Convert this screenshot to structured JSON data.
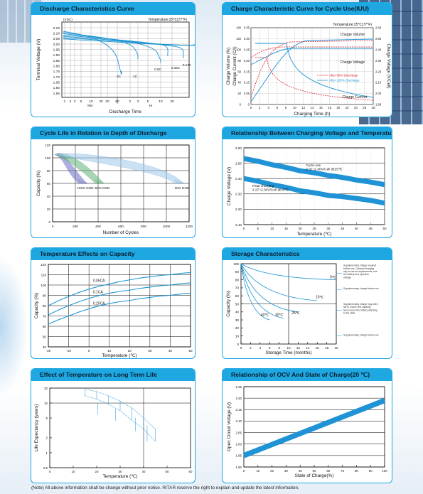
{
  "note": "(Note) All above information shall be change without prior notice. RITAR reserve the right to explain and update the latest information.",
  "colors": {
    "accent": "#1ea7e1",
    "band": "#1f93d6",
    "line": "#1b94d3",
    "red": "#e0202a",
    "dark": "#000000"
  },
  "panels": {
    "p1": {
      "title": "Discharge Characteristics Curve"
    },
    "p2": {
      "title": "Charge Characteristic Curve for Cycle Use(IUU)"
    },
    "p3": {
      "title": "Cycle Life in Relation to Depth of Discharge"
    },
    "p4": {
      "title": "Relationship Between Charging Voltage and Temperature"
    },
    "p5": {
      "title": "Temperature Effects on Capacity"
    },
    "p6": {
      "title": "Storage Characteristics"
    },
    "p7": {
      "title": "Effect of Temperature on Long Term Life"
    },
    "p8": {
      "title": "Relationship of OCV And State of Charge(20 ℃)"
    }
  },
  "chart_data": [
    {
      "id": "p1",
      "type": "line",
      "xlabel": "Discharge Time",
      "ylabel": "Terminal Voltage (V)",
      "annotation": "Temperature:25℃(77°F)",
      "yunit": "(VDC)",
      "ylim": [
        1.5,
        2.2
      ],
      "yticks": [
        "2.15",
        "2.10",
        "2.05",
        "2.00",
        "1.95",
        "1.90",
        "1.85",
        "1.80",
        "1.75",
        "1.70",
        "1.65",
        "1.60",
        "1.55"
      ],
      "xticks": [
        "1",
        "2",
        "3",
        "5",
        "10",
        "20",
        "30",
        "60",
        "2",
        "3",
        "5",
        "10",
        "20"
      ],
      "xunits": [
        "Min",
        "Hr"
      ],
      "series": [
        {
          "name": "3C",
          "end_v": 1.62
        },
        {
          "name": "1C",
          "end_v": 1.68
        },
        {
          "name": "0.6C",
          "end_v": 1.72
        },
        {
          "name": "0.25C",
          "end_v": 1.77
        },
        {
          "name": "0.17C",
          "end_v": 1.8
        },
        {
          "name": "0.1C",
          "end_v": 1.8
        },
        {
          "name": "0.05C",
          "end_v": 1.83
        }
      ]
    },
    {
      "id": "p2",
      "type": "line",
      "xlabel": "Charging Time (h)",
      "ylabel": "Charge Volume (%)",
      "ylabel2": "Charge Current (CA)",
      "ylabel3": "Charge Voltage (V/Cell)",
      "annotation": "Temperature:25℃(77°F)",
      "legend": [
        "After 50% Discharge",
        "After 100% Discharge"
      ],
      "labels": [
        "Charge Volume",
        "Charge Voltage",
        "Charge Current"
      ],
      "xticks": [
        "0",
        "2",
        "4",
        "6",
        "8",
        "10",
        "12",
        "14",
        "16",
        "18",
        "20",
        "22",
        "24",
        "26",
        "28"
      ],
      "yticks_left": [
        "140",
        "120",
        "100",
        "80",
        "60",
        "40",
        "20",
        "0"
      ],
      "yticks_ca": [
        "0.35",
        "0.30",
        "0.25",
        "0.20",
        "0.15",
        "0.10",
        "0.05",
        "0"
      ],
      "yticks_right": [
        "2.60",
        "2.50",
        "2.40",
        "2.30",
        "2.20",
        "2.10",
        "2.00",
        "1.90"
      ]
    },
    {
      "id": "p3",
      "type": "area",
      "xlabel": "Number of Cycles",
      "ylabel": "Capacity (%)",
      "xlim": [
        0,
        1200
      ],
      "ylim": [
        0,
        120
      ],
      "xticks": [
        "0",
        "200",
        "400",
        "600",
        "800",
        "1000",
        "1200"
      ],
      "yticks": [
        "120",
        "100",
        "80",
        "60",
        "40",
        "20",
        "0"
      ],
      "series": [
        {
          "name": "100% DOD",
          "end_cycles": 300
        },
        {
          "name": "50% DOD",
          "end_cycles": 450
        },
        {
          "name": "30% DOD",
          "end_cycles": 1150
        }
      ]
    },
    {
      "id": "p4",
      "type": "line",
      "xlabel": "Temperature (℃)",
      "ylabel": "Charge Voltage (V)",
      "xlim": [
        0,
        50
      ],
      "ylim": [
        2.1,
        2.6
      ],
      "xticks": [
        "0",
        "5",
        "10",
        "15",
        "20",
        "25",
        "30",
        "35",
        "40",
        "45",
        "50"
      ],
      "yticks": [
        "2.60",
        "2.50",
        "2.40",
        "2.30",
        "2.20",
        "2.10"
      ],
      "series": [
        {
          "name": "Cycle use",
          "detail": "2.37~2.40V/Cell @25℃",
          "x": [
            0,
            10,
            20,
            30,
            40,
            50
          ],
          "y": [
            2.53,
            2.49,
            2.45,
            2.42,
            2.39,
            2.36
          ]
        },
        {
          "name": "Float charging",
          "detail": "2.27~2.30V/Cell @25℃",
          "x": [
            0,
            10,
            20,
            30,
            40,
            50
          ],
          "y": [
            2.4,
            2.36,
            2.32,
            2.29,
            2.27,
            2.24
          ]
        }
      ]
    },
    {
      "id": "p5",
      "type": "line",
      "xlabel": "Temperature (℃)",
      "ylabel": "Capacity (%)",
      "xlim": [
        -20,
        50
      ],
      "ylim": [
        40,
        120
      ],
      "xticks": [
        "-20",
        "-10",
        "0",
        "10",
        "20",
        "30",
        "40",
        "50"
      ],
      "yticks": [
        "120",
        "110",
        "100",
        "90",
        "80",
        "70",
        "60",
        "50",
        "40"
      ],
      "series": [
        {
          "name": "0.05CA",
          "x": [
            -20,
            -10,
            0,
            10,
            20,
            30,
            40,
            50
          ],
          "y": [
            80,
            89,
            96,
            101,
            105,
            108,
            110,
            112
          ]
        },
        {
          "name": "0.1CA",
          "x": [
            -20,
            -10,
            0,
            10,
            20,
            30,
            40,
            50
          ],
          "y": [
            71,
            80,
            87,
            92,
            95,
            98,
            100,
            102
          ]
        },
        {
          "name": "0.25CA",
          "x": [
            -20,
            -10,
            0,
            10,
            20,
            30,
            40,
            50
          ],
          "y": [
            62,
            70,
            77,
            82,
            85,
            88,
            90,
            92
          ]
        }
      ]
    },
    {
      "id": "p6",
      "type": "line",
      "xlabel": "Storage Time (months)",
      "ylabel": "Capacity (%)",
      "xlim": [
        0,
        20
      ],
      "ylim": [
        0,
        100
      ],
      "xticks": [
        "0",
        "2",
        "4",
        "6",
        "8",
        "10",
        "12",
        "14",
        "16",
        "18",
        "20"
      ],
      "yticks": [
        "100",
        "90",
        "80",
        "70",
        "60",
        "50",
        "40",
        "30",
        "20",
        "10",
        "0"
      ],
      "series": [
        {
          "name": "0℃",
          "end": [
            20,
            80
          ]
        },
        {
          "name": "10℃",
          "end": [
            16,
            54
          ]
        },
        {
          "name": "25℃",
          "end": [
            12,
            40
          ]
        },
        {
          "name": "30℃",
          "end": [
            9,
            32
          ]
        },
        {
          "name": "40℃",
          "end": [
            6,
            30
          ]
        }
      ],
      "notes": [
        "Supplementary charge required before use. Optional charging way to use as requirements, see the battery that operates voltage",
        "Supplementary charge before use",
        "Supplementary charge may often fail to recover the capacity. Never leave the battery standing to the state",
        "Supplementary charge before use"
      ]
    },
    {
      "id": "p7",
      "type": "area",
      "xlabel": "Temperature (℃)",
      "ylabel": "Life Expectancy (years)",
      "xlim": [
        0,
        60
      ],
      "ylim": [
        0.5,
        20
      ],
      "xticks": [
        "0",
        "10",
        "20",
        "30",
        "40",
        "50",
        "60"
      ],
      "yticks": [
        "20",
        "10",
        "5",
        "2",
        "1",
        "0.5"
      ]
    },
    {
      "id": "p8",
      "type": "line",
      "xlabel": "State of Charge(%)",
      "ylabel": "Open Circuit Voltage (V)",
      "xlim": [
        0,
        100
      ],
      "ylim": [
        1.9,
        2.25
      ],
      "xticks": [
        "0",
        "10",
        "20",
        "30",
        "40",
        "50",
        "60",
        "70",
        "80",
        "90",
        "100"
      ],
      "yticks": [
        "2.25",
        "2.20",
        "2.15",
        "2.10",
        "2.05",
        "2.00",
        "1.95",
        "1.90"
      ],
      "x": [
        0,
        100
      ],
      "y": [
        1.95,
        2.19
      ]
    }
  ]
}
